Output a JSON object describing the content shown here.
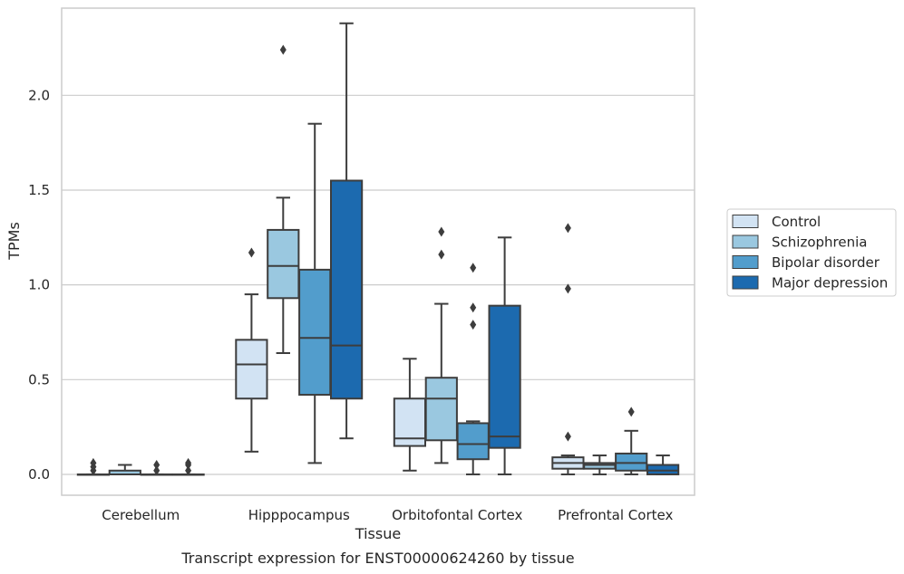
{
  "chart_data": {
    "type": "box",
    "xlabel": "Tissue",
    "ylabel": "TPMs",
    "caption": "Transcript expression for ENST00000624260 by tissue",
    "ylim": [
      -0.11,
      2.46
    ],
    "yticks": [
      0.0,
      0.5,
      1.0,
      1.5,
      2.0
    ],
    "ytick_labels": [
      "0.0",
      "0.5",
      "1.0",
      "1.5",
      "2.0"
    ],
    "grid": "horizontal",
    "legend_position": "right",
    "categories": [
      "Cerebellum",
      "Hipppocampus",
      "Orbitofontal Cortex",
      "Prefrontal Cortex"
    ],
    "series": [
      {
        "name": "Control",
        "color": "#d2e3f3",
        "boxes": [
          {
            "whislo": 0.0,
            "q1": 0.0,
            "med": 0.0,
            "q3": 0.0,
            "whishi": 0.0,
            "fliers": [
              0.02,
              0.04,
              0.06
            ]
          },
          {
            "whislo": 0.12,
            "q1": 0.4,
            "med": 0.58,
            "q3": 0.71,
            "whishi": 0.95,
            "fliers": [
              1.17
            ]
          },
          {
            "whislo": 0.02,
            "q1": 0.15,
            "med": 0.19,
            "q3": 0.4,
            "whishi": 0.61,
            "fliers": []
          },
          {
            "whislo": 0.0,
            "q1": 0.03,
            "med": 0.06,
            "q3": 0.09,
            "whishi": 0.1,
            "fliers": [
              0.2,
              0.98,
              1.3
            ]
          }
        ]
      },
      {
        "name": "Schizophrenia",
        "color": "#9ac8e0",
        "boxes": [
          {
            "whislo": 0.0,
            "q1": 0.0,
            "med": 0.0,
            "q3": 0.02,
            "whishi": 0.05,
            "fliers": []
          },
          {
            "whislo": 0.64,
            "q1": 0.93,
            "med": 1.1,
            "q3": 1.29,
            "whishi": 1.46,
            "fliers": [
              2.24
            ]
          },
          {
            "whislo": 0.06,
            "q1": 0.18,
            "med": 0.4,
            "q3": 0.51,
            "whishi": 0.9,
            "fliers": [
              1.16,
              1.28
            ]
          },
          {
            "whislo": 0.0,
            "q1": 0.03,
            "med": 0.05,
            "q3": 0.06,
            "whishi": 0.1,
            "fliers": []
          }
        ]
      },
      {
        "name": "Bipolar disorder",
        "color": "#529dcc",
        "boxes": [
          {
            "whislo": 0.0,
            "q1": 0.0,
            "med": 0.0,
            "q3": 0.0,
            "whishi": 0.0,
            "fliers": [
              0.02,
              0.05
            ]
          },
          {
            "whislo": 0.06,
            "q1": 0.42,
            "med": 0.72,
            "q3": 1.08,
            "whishi": 1.85,
            "fliers": []
          },
          {
            "whislo": 0.0,
            "q1": 0.08,
            "med": 0.16,
            "q3": 0.27,
            "whishi": 0.28,
            "fliers": [
              0.79,
              0.88,
              1.09
            ]
          },
          {
            "whislo": 0.0,
            "q1": 0.02,
            "med": 0.06,
            "q3": 0.11,
            "whishi": 0.23,
            "fliers": [
              0.33
            ]
          }
        ]
      },
      {
        "name": "Major depression",
        "color": "#1c6aaf",
        "boxes": [
          {
            "whislo": 0.0,
            "q1": 0.0,
            "med": 0.0,
            "q3": 0.0,
            "whishi": 0.0,
            "fliers": [
              0.02,
              0.05,
              0.06
            ]
          },
          {
            "whislo": 0.19,
            "q1": 0.4,
            "med": 0.68,
            "q3": 1.55,
            "whishi": 2.38,
            "fliers": []
          },
          {
            "whislo": 0.0,
            "q1": 0.14,
            "med": 0.2,
            "q3": 0.89,
            "whishi": 1.25,
            "fliers": []
          },
          {
            "whislo": 0.0,
            "q1": 0.0,
            "med": 0.02,
            "q3": 0.05,
            "whishi": 0.1,
            "fliers": []
          }
        ]
      }
    ]
  }
}
